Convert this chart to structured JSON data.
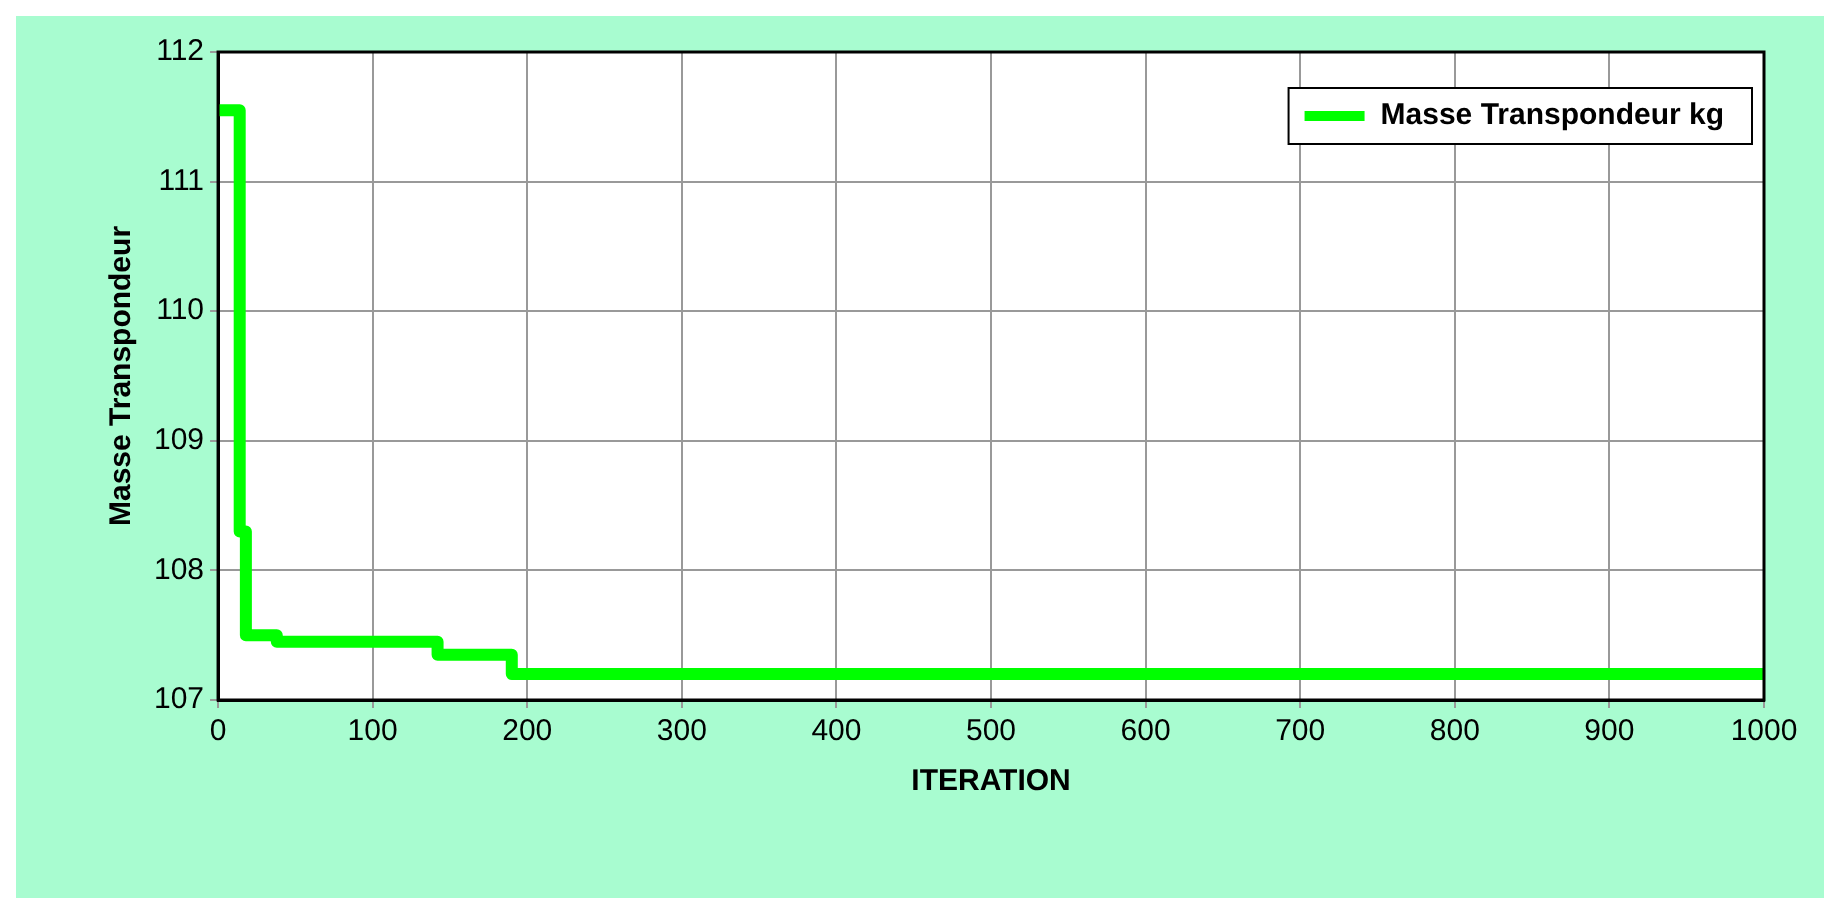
{
  "chart_data": {
    "type": "step",
    "xlabel": "ITERATION",
    "ylabel": "Masse Transpondeur",
    "x": [
      0,
      14,
      18,
      38,
      142,
      190,
      1000
    ],
    "series": [
      {
        "name": "Masse Transpondeur kg",
        "color": "#00ff00",
        "values": [
          111.55,
          108.3,
          107.5,
          107.45,
          107.35,
          107.2,
          107.2
        ]
      }
    ],
    "xlim": [
      0,
      1000
    ],
    "xticks": [
      0,
      100,
      200,
      300,
      400,
      500,
      600,
      700,
      800,
      900,
      1000
    ],
    "ylim": [
      107,
      112
    ],
    "yticks": [
      107,
      108,
      109,
      110,
      111,
      112
    ],
    "grid": true,
    "legend": "top right"
  }
}
